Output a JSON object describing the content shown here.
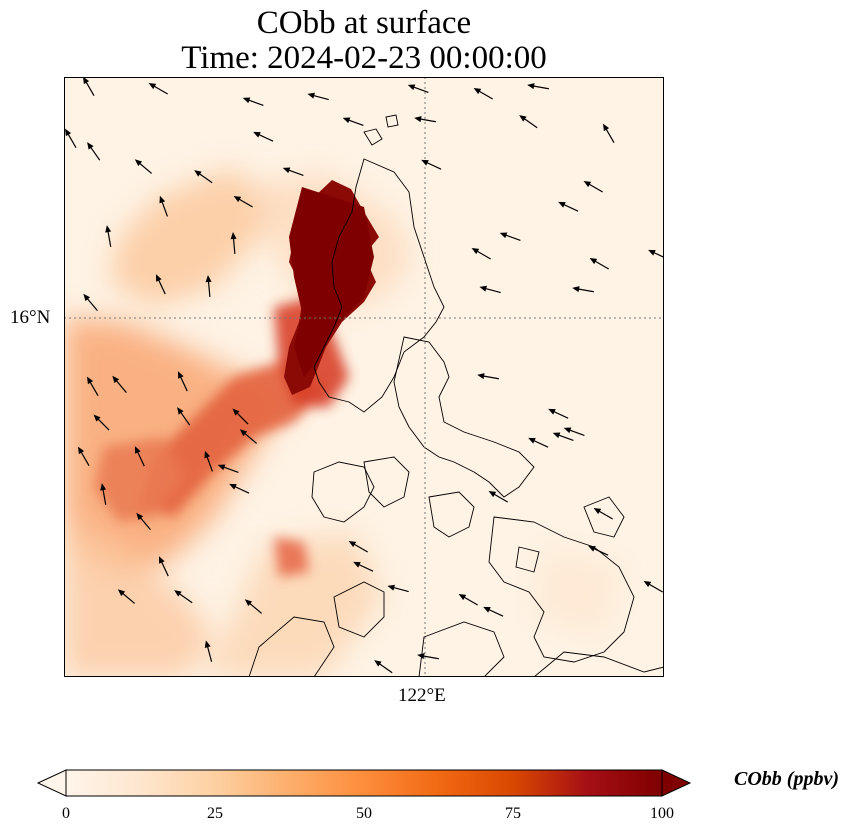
{
  "title": {
    "line1": "CObb at surface",
    "line2": "Time: 2024-02-23 00:00:00"
  },
  "map": {
    "gridlines": {
      "latitude_label": "16°N",
      "longitude_label": "122°E"
    },
    "field": "CObb",
    "colormap": [
      "#fff5eb",
      "#fee6ce",
      "#fdd0a2",
      "#fdae6b",
      "#fd8d3c",
      "#f16913",
      "#d94801",
      "#a50f15",
      "#7f0000"
    ]
  },
  "colorbar": {
    "label": "CObb (ppbv)",
    "ticks": [
      "0",
      "25",
      "50",
      "75",
      "100"
    ],
    "min": 0,
    "max": 100,
    "extend": "both"
  }
}
